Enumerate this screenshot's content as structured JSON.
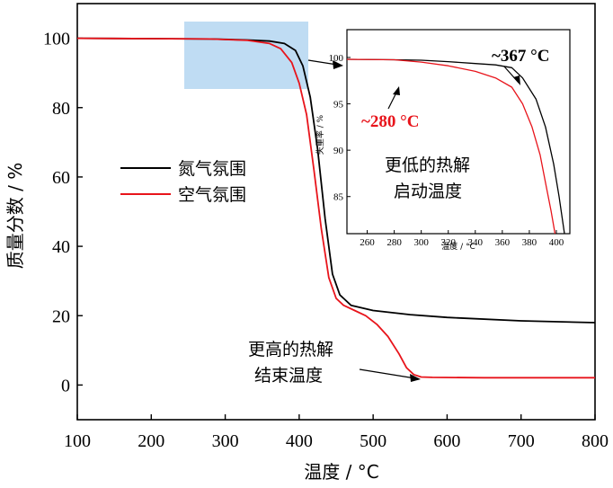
{
  "chart_data": [
    {
      "type": "line",
      "xlabel": "温度 / °C",
      "ylabel": "质量分数 / %",
      "xlim": [
        100,
        800
      ],
      "ylim": [
        -10,
        110
      ],
      "xticks": [
        100,
        200,
        300,
        400,
        500,
        600,
        700,
        800
      ],
      "yticks": [
        0,
        20,
        40,
        60,
        80,
        100
      ],
      "grid": false,
      "legend_position": "left-middle",
      "series": [
        {
          "name": "氮气氛围",
          "color": "#000000",
          "x": [
            100,
            200,
            280,
            330,
            360,
            380,
            395,
            405,
            415,
            425,
            435,
            445,
            455,
            470,
            500,
            550,
            600,
            700,
            800
          ],
          "y": [
            100,
            99.9,
            99.8,
            99.5,
            99.2,
            98.5,
            96.5,
            92,
            83,
            68,
            48,
            32,
            26,
            23,
            21.5,
            20.3,
            19.5,
            18.5,
            18
          ]
        },
        {
          "name": "空气氛围",
          "color": "#e8141b",
          "x": [
            100,
            200,
            280,
            330,
            360,
            375,
            390,
            400,
            410,
            420,
            430,
            440,
            450,
            460,
            475,
            490,
            505,
            520,
            535,
            545,
            555,
            565,
            580,
            650,
            800
          ],
          "y": [
            100,
            99.9,
            99.8,
            99.4,
            98.5,
            97,
            93,
            87,
            78,
            62,
            45,
            31,
            25,
            23,
            21.5,
            20,
            17.5,
            14,
            9,
            5,
            3,
            2.3,
            2.2,
            2.1,
            2.1
          ]
        }
      ],
      "annotations": [
        "更高的热解",
        "结束温度"
      ]
    },
    {
      "type": "line",
      "role": "inset",
      "xlabel": "温度 / °C",
      "ylabel": "失重率 / %",
      "xlim": [
        245,
        410
      ],
      "ylim": [
        81,
        103
      ],
      "xticks": [
        260,
        280,
        300,
        320,
        340,
        360,
        380,
        400
      ],
      "yticks": [
        85,
        90,
        95,
        100
      ],
      "series": [
        {
          "name": "氮气氛围",
          "color": "#000000",
          "x": [
            245,
            280,
            300,
            320,
            340,
            355,
            367,
            375,
            385,
            392,
            398,
            402,
            406
          ],
          "y": [
            99.8,
            99.75,
            99.7,
            99.55,
            99.35,
            99.2,
            98.9,
            97.8,
            95.5,
            92.5,
            88.5,
            85,
            81
          ]
        },
        {
          "name": "空气氛围",
          "color": "#e8141b",
          "x": [
            245,
            280,
            300,
            320,
            340,
            355,
            367,
            375,
            382,
            388,
            392,
            396,
            399
          ],
          "y": [
            99.8,
            99.75,
            99.5,
            99.1,
            98.5,
            97.8,
            96.8,
            95,
            92.5,
            89.5,
            86.5,
            83.5,
            81
          ]
        }
      ],
      "annotations": [
        "~367 °C",
        "~280 °C",
        "更低的热解",
        "启动温度"
      ]
    }
  ],
  "labels": {
    "xlabel": "温度 / °C",
    "ylabel": "质量分数 / %",
    "legend_n2": "氮气氛围",
    "legend_air": "空气氛围",
    "anno_end_1": "更高的热解",
    "anno_end_2": "结束温度",
    "inset_temp_black": "~367 °C",
    "inset_temp_red": "~280 °C",
    "inset_anno_1": "更低的热解",
    "inset_anno_2": "启动温度",
    "inset_xlabel": "温度 / °C",
    "inset_ylabel": "失重率 / %"
  },
  "colors": {
    "nitrogen": "#000000",
    "air": "#e8141b",
    "highlight": "#b8d8f2"
  }
}
